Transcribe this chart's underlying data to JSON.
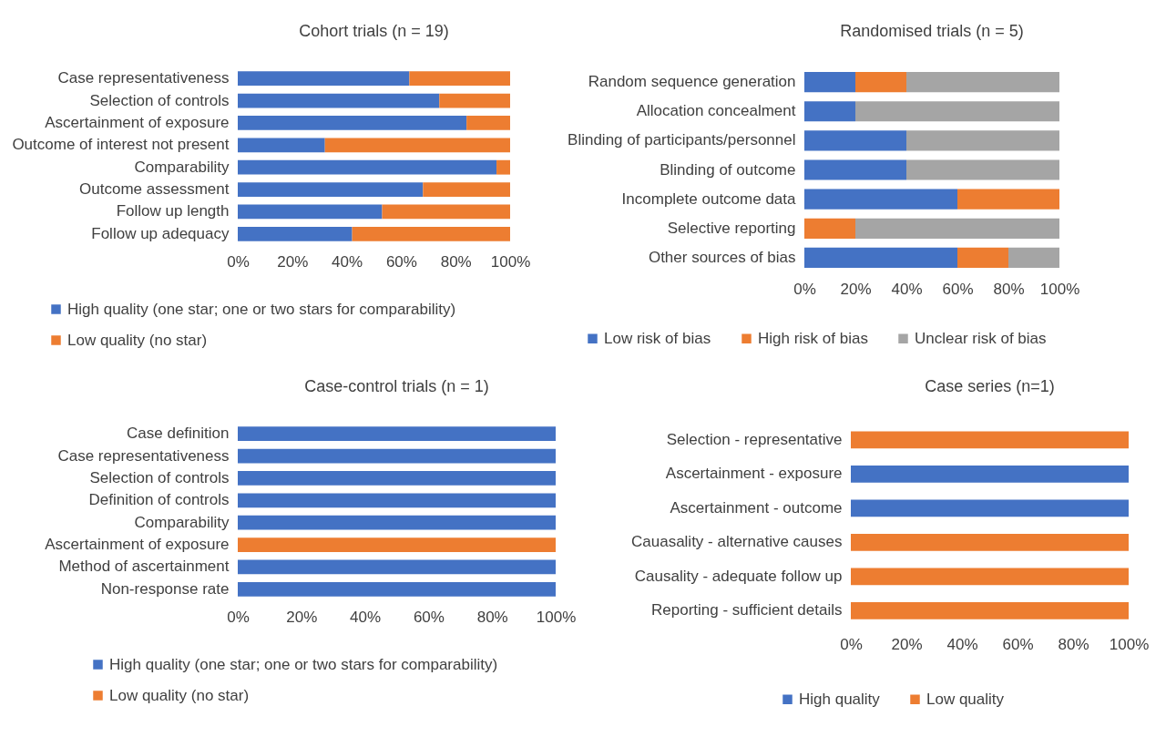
{
  "chart_data": [
    {
      "type": "bar",
      "orientation": "horizontal",
      "stacked": true,
      "title": "Cohort trials (n = 19)",
      "categories": [
        "Case representativeness",
        "Selection of controls",
        "Ascertainment of exposure",
        "Outcome of interest not present",
        "Comparability",
        "Outcome assessment",
        "Follow up length",
        "Follow up adequacy"
      ],
      "series": [
        {
          "name": "High quality (one star; one or two stars for comparability)",
          "color": "#4472c4",
          "values": [
            63,
            74,
            84,
            32,
            95,
            68,
            53,
            42
          ]
        },
        {
          "name": "Low quality (no star)",
          "color": "#ed7d31",
          "values": [
            37,
            26,
            16,
            68,
            5,
            32,
            47,
            58
          ]
        }
      ],
      "xlim": [
        0,
        100
      ],
      "xticks": [
        {
          "value": 0,
          "label": "0%"
        },
        {
          "value": 20,
          "label": "20%"
        },
        {
          "value": 40,
          "label": "40%"
        },
        {
          "value": 60,
          "label": "60%"
        },
        {
          "value": 80,
          "label": "80%"
        },
        {
          "value": 100,
          "label": "100%"
        }
      ],
      "grid": false,
      "legend": "bottom"
    },
    {
      "type": "bar",
      "orientation": "horizontal",
      "stacked": true,
      "title": "Randomised trials (n = 5)",
      "categories": [
        "Random sequence generation",
        "Allocation concealment",
        "Blinding of participants/personnel",
        "Blinding of outcome",
        "Incomplete outcome data",
        "Selective reporting",
        "Other sources of bias"
      ],
      "series": [
        {
          "name": "Low risk of bias",
          "color": "#4472c4",
          "values": [
            20,
            20,
            40,
            40,
            60,
            0,
            60
          ]
        },
        {
          "name": "High risk of bias",
          "color": "#ed7d31",
          "values": [
            20,
            0,
            0,
            0,
            40,
            20,
            20
          ]
        },
        {
          "name": "Unclear risk of bias",
          "color": "#a5a5a5",
          "values": [
            60,
            80,
            60,
            60,
            0,
            80,
            20
          ]
        }
      ],
      "xlim": [
        0,
        100
      ],
      "xticks": [
        {
          "value": 0,
          "label": "0%"
        },
        {
          "value": 20,
          "label": "20%"
        },
        {
          "value": 40,
          "label": "40%"
        },
        {
          "value": 60,
          "label": "60%"
        },
        {
          "value": 80,
          "label": "80%"
        },
        {
          "value": 100,
          "label": "100%"
        }
      ],
      "grid": false,
      "legend": "bottom"
    },
    {
      "type": "bar",
      "orientation": "horizontal",
      "stacked": true,
      "title": "Case-control trials (n = 1)",
      "categories": [
        "Case definition",
        "Case representativeness",
        "Selection of controls",
        "Definition of controls",
        "Comparability",
        "Ascertainment of exposure",
        "Method of ascertainment",
        "Non-response rate"
      ],
      "series": [
        {
          "name": "High quality (one star; one or two stars for comparability)",
          "color": "#4472c4",
          "values": [
            100,
            100,
            100,
            100,
            100,
            0,
            100,
            100
          ]
        },
        {
          "name": "Low quality (no star)",
          "color": "#ed7d31",
          "values": [
            0,
            0,
            0,
            0,
            0,
            100,
            0,
            0
          ]
        }
      ],
      "xlim": [
        0,
        100
      ],
      "xticks": [
        {
          "value": 0,
          "label": "0%"
        },
        {
          "value": 20,
          "label": "20%"
        },
        {
          "value": 40,
          "label": "40%"
        },
        {
          "value": 60,
          "label": "60%"
        },
        {
          "value": 80,
          "label": "80%"
        },
        {
          "value": 100,
          "label": "100%"
        }
      ],
      "grid": false,
      "legend": "bottom"
    },
    {
      "type": "bar",
      "orientation": "horizontal",
      "stacked": true,
      "title": "Case series (n=1)",
      "categories": [
        "Selection - representative",
        "Ascertainment - exposure",
        "Ascertainment - outcome",
        "Cauasality - alternative causes",
        "Causality - adequate follow up",
        "Reporting - sufficient details"
      ],
      "series": [
        {
          "name": "High quality",
          "color": "#4472c4",
          "values": [
            0,
            100,
            100,
            0,
            0,
            0
          ]
        },
        {
          "name": "Low quality",
          "color": "#ed7d31",
          "values": [
            100,
            0,
            0,
            100,
            100,
            100
          ]
        }
      ],
      "xlim": [
        0,
        100
      ],
      "xticks": [
        {
          "value": 0,
          "label": "0%"
        },
        {
          "value": 20,
          "label": "20%"
        },
        {
          "value": 40,
          "label": "40%"
        },
        {
          "value": 60,
          "label": "60%"
        },
        {
          "value": 80,
          "label": "80%"
        },
        {
          "value": 100,
          "label": "100%"
        }
      ],
      "grid": false,
      "legend": "bottom"
    }
  ]
}
